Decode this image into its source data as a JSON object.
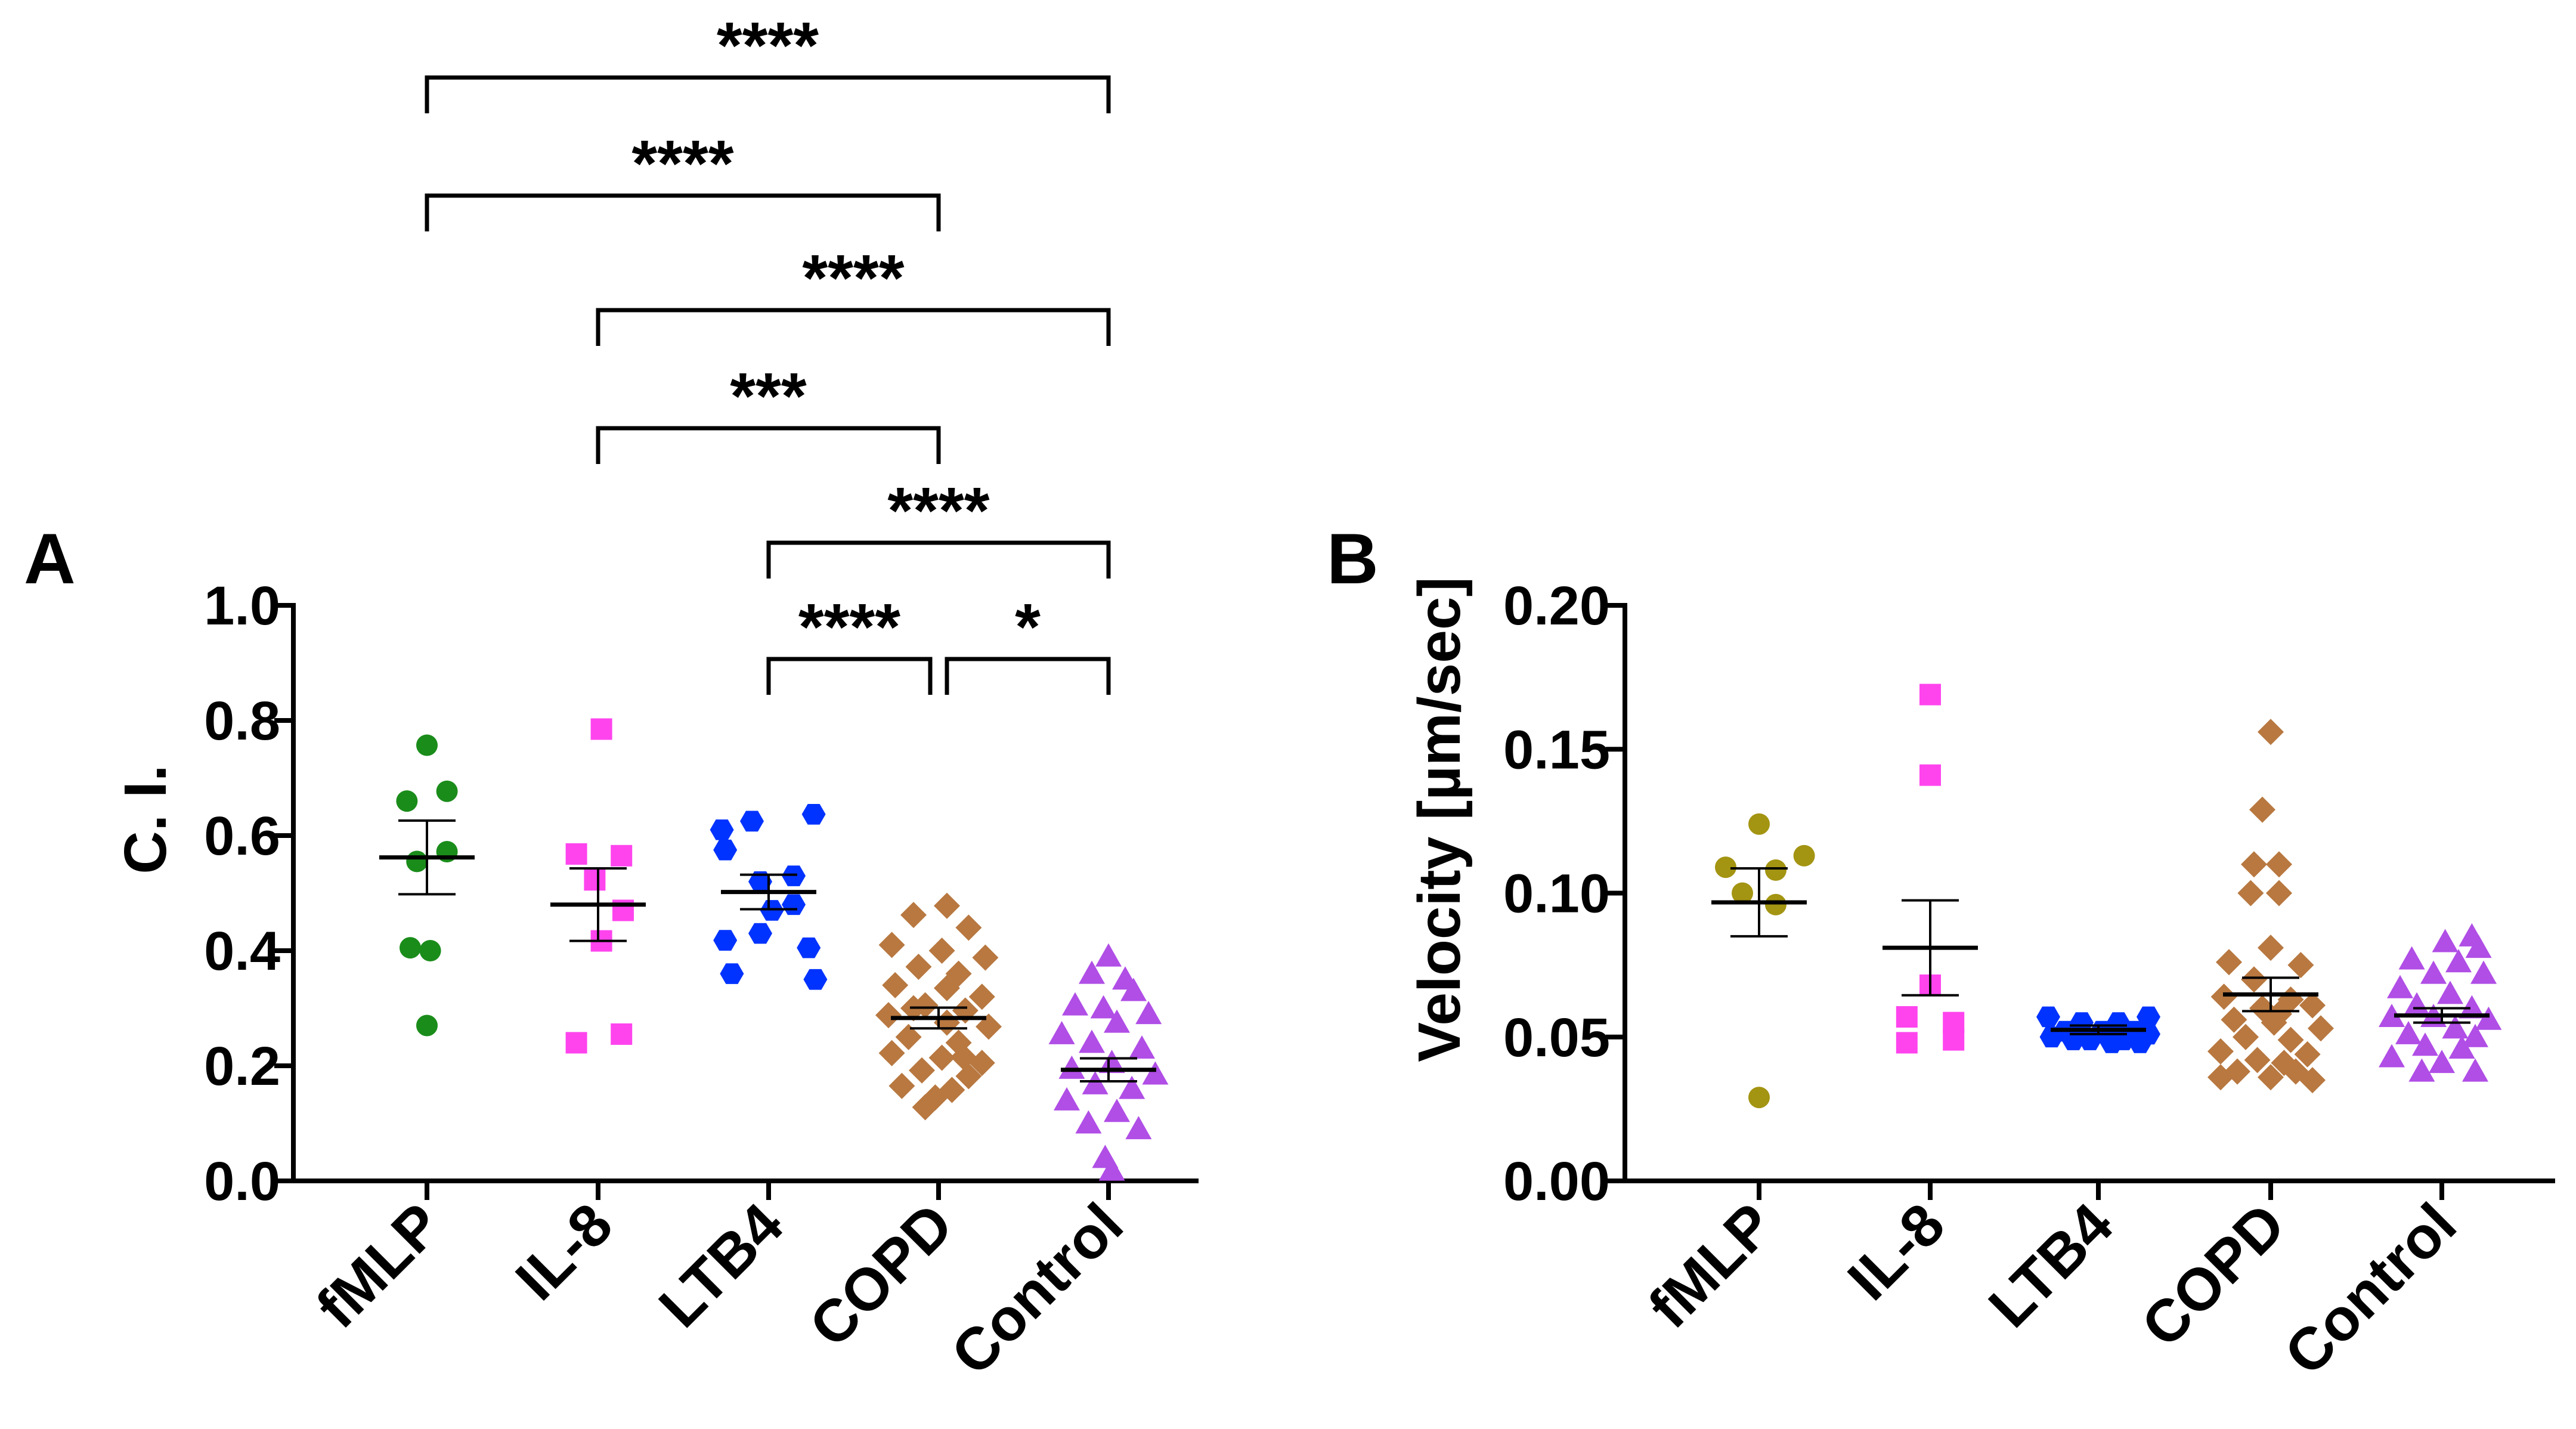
{
  "panels": [
    {
      "letter": "A"
    },
    {
      "letter": "B"
    }
  ],
  "chart_data": [
    {
      "type": "scatter",
      "panel": "A",
      "title": "",
      "xlabel": "",
      "ylabel": "C. I.",
      "ylim": [
        0,
        1.0
      ],
      "yticks": [
        0.0,
        0.2,
        0.4,
        0.6,
        0.8,
        1.0
      ],
      "ytick_labels": [
        "0.0",
        "0.2",
        "0.4",
        "0.6",
        "0.8",
        "1.0"
      ],
      "categories": [
        "fMLP",
        "IL-8",
        "LTB4",
        "COPD",
        "Control"
      ],
      "groups": [
        {
          "name": "fMLP",
          "color": "#1a8c1a",
          "marker": "circle",
          "mean": 0.562,
          "sem": 0.064,
          "points": [
            [
              -0.12,
              0.66
            ],
            [
              0.0,
              0.757
            ],
            [
              0.12,
              0.677
            ],
            [
              -0.06,
              0.555
            ],
            [
              0.12,
              0.572
            ],
            [
              0.02,
              0.4
            ],
            [
              -0.1,
              0.405
            ],
            [
              0.0,
              0.27
            ]
          ]
        },
        {
          "name": "IL-8",
          "color": "#ff44ee",
          "marker": "square",
          "mean": 0.48,
          "sem": 0.063,
          "points": [
            [
              0.02,
              0.785
            ],
            [
              -0.13,
              0.568
            ],
            [
              0.14,
              0.565
            ],
            [
              -0.02,
              0.523
            ],
            [
              0.15,
              0.47
            ],
            [
              0.02,
              0.417
            ],
            [
              -0.13,
              0.24
            ],
            [
              0.14,
              0.255
            ]
          ]
        },
        {
          "name": "LTB4",
          "color": "#0033ff",
          "marker": "hexagon",
          "mean": 0.502,
          "sem": 0.03,
          "points": [
            [
              -0.28,
              0.61
            ],
            [
              -0.1,
              0.625
            ],
            [
              0.27,
              0.637
            ],
            [
              -0.26,
              0.575
            ],
            [
              -0.05,
              0.52
            ],
            [
              0.15,
              0.53
            ],
            [
              -0.26,
              0.418
            ],
            [
              -0.05,
              0.43
            ],
            [
              0.24,
              0.405
            ],
            [
              0.02,
              0.47
            ],
            [
              0.15,
              0.48
            ],
            [
              -0.22,
              0.36
            ],
            [
              0.28,
              0.35
            ]
          ]
        },
        {
          "name": "COPD",
          "color": "#b87840",
          "marker": "diamond",
          "mean": 0.283,
          "sem": 0.018,
          "points": [
            [
              0.05,
              0.478
            ],
            [
              -0.15,
              0.462
            ],
            [
              0.18,
              0.44
            ],
            [
              -0.28,
              0.41
            ],
            [
              0.02,
              0.4
            ],
            [
              0.28,
              0.388
            ],
            [
              -0.12,
              0.372
            ],
            [
              0.12,
              0.36
            ],
            [
              -0.26,
              0.34
            ],
            [
              0.05,
              0.335
            ],
            [
              0.26,
              0.32
            ],
            [
              -0.08,
              0.305
            ],
            [
              0.16,
              0.296
            ],
            [
              -0.3,
              0.288
            ],
            [
              0.05,
              0.275
            ],
            [
              0.3,
              0.268
            ],
            [
              -0.18,
              0.25
            ],
            [
              0.12,
              0.24
            ],
            [
              -0.28,
              0.222
            ],
            [
              0.02,
              0.214
            ],
            [
              0.26,
              0.205
            ],
            [
              -0.1,
              0.192
            ],
            [
              0.18,
              0.182
            ],
            [
              -0.22,
              0.165
            ],
            [
              0.08,
              0.158
            ],
            [
              -0.02,
              0.145
            ],
            [
              -0.08,
              0.128
            ],
            [
              0.15,
              0.215
            ],
            [
              -0.15,
              0.3
            ]
          ]
        },
        {
          "name": "Control",
          "color": "#b04ee6",
          "marker": "triangle",
          "mean": 0.193,
          "sem": 0.02,
          "points": [
            [
              0.0,
              0.39
            ],
            [
              -0.1,
              0.36
            ],
            [
              0.1,
              0.35
            ],
            [
              0.15,
              0.33
            ],
            [
              -0.2,
              0.305
            ],
            [
              -0.03,
              0.3
            ],
            [
              0.24,
              0.29
            ],
            [
              0.05,
              0.275
            ],
            [
              -0.28,
              0.255
            ],
            [
              -0.1,
              0.24
            ],
            [
              0.2,
              0.23
            ],
            [
              0.02,
              0.205
            ],
            [
              -0.22,
              0.195
            ],
            [
              0.28,
              0.185
            ],
            [
              -0.08,
              0.168
            ],
            [
              0.14,
              0.16
            ],
            [
              -0.25,
              0.14
            ],
            [
              0.05,
              0.12
            ],
            [
              -0.12,
              0.1
            ],
            [
              0.18,
              0.09
            ],
            [
              -0.02,
              0.04
            ],
            [
              0.02,
              0.018
            ]
          ]
        }
      ],
      "comparisons": [
        {
          "from": "fMLP",
          "to": "Control",
          "label": "****"
        },
        {
          "from": "fMLP",
          "to": "COPD",
          "label": "****"
        },
        {
          "from": "IL-8",
          "to": "Control",
          "label": "****"
        },
        {
          "from": "IL-8",
          "to": "COPD",
          "label": "***"
        },
        {
          "from": "LTB4",
          "to": "Control",
          "label": "****"
        },
        {
          "from": "LTB4",
          "to": "COPD",
          "label": "****"
        },
        {
          "from": "COPD",
          "to": "Control",
          "label": "*"
        }
      ]
    },
    {
      "type": "scatter",
      "panel": "B",
      "title": "",
      "xlabel": "",
      "ylabel": "Velocity [µm/sec]",
      "ylim": [
        0,
        0.2
      ],
      "yticks": [
        0.0,
        0.05,
        0.1,
        0.15,
        0.2
      ],
      "ytick_labels": [
        "0.00",
        "0.05",
        "0.10",
        "0.15",
        "0.20"
      ],
      "categories": [
        "fMLP",
        "IL-8",
        "LTB4",
        "COPD",
        "Control"
      ],
      "groups": [
        {
          "name": "fMLP",
          "color": "#a39412",
          "marker": "circle",
          "mean": 0.0968,
          "sem": 0.0118,
          "points": [
            [
              0.0,
              0.124
            ],
            [
              -0.2,
              0.109
            ],
            [
              0.1,
              0.108
            ],
            [
              0.27,
              0.113
            ],
            [
              -0.1,
              0.1
            ],
            [
              0.1,
              0.096
            ],
            [
              0.0,
              0.029
            ]
          ]
        },
        {
          "name": "IL-8",
          "color": "#ff44ee",
          "marker": "square",
          "mean": 0.081,
          "sem": 0.0165,
          "points": [
            [
              0.0,
              0.169
            ],
            [
              0.0,
              0.141
            ],
            [
              0.0,
              0.068
            ],
            [
              -0.14,
              0.057
            ],
            [
              0.14,
              0.055
            ],
            [
              -0.14,
              0.048
            ],
            [
              0.14,
              0.049
            ]
          ]
        },
        {
          "name": "LTB4",
          "color": "#0033ff",
          "marker": "hexagon",
          "mean": 0.0525,
          "sem": 0.0015,
          "points": [
            [
              -0.3,
              0.057
            ],
            [
              -0.1,
              0.055
            ],
            [
              0.12,
              0.055
            ],
            [
              0.3,
              0.057
            ],
            [
              -0.2,
              0.052
            ],
            [
              0.02,
              0.052
            ],
            [
              0.22,
              0.052
            ],
            [
              -0.28,
              0.05
            ],
            [
              -0.05,
              0.049
            ],
            [
              0.15,
              0.049
            ],
            [
              0.3,
              0.051
            ],
            [
              -0.15,
              0.049
            ],
            [
              0.08,
              0.048
            ],
            [
              0.25,
              0.048
            ]
          ]
        },
        {
          "name": "COPD",
          "color": "#b87840",
          "marker": "diamond",
          "mean": 0.0648,
          "sem": 0.0058,
          "points": [
            [
              0.0,
              0.156
            ],
            [
              -0.05,
              0.129
            ],
            [
              -0.1,
              0.11
            ],
            [
              0.05,
              0.11
            ],
            [
              -0.12,
              0.1
            ],
            [
              0.05,
              0.1
            ],
            [
              0.0,
              0.081
            ],
            [
              -0.25,
              0.076
            ],
            [
              0.18,
              0.075
            ],
            [
              -0.1,
              0.07
            ],
            [
              -0.28,
              0.064
            ],
            [
              0.12,
              0.063
            ],
            [
              -0.05,
              0.06
            ],
            [
              0.25,
              0.061
            ],
            [
              -0.22,
              0.056
            ],
            [
              0.02,
              0.055
            ],
            [
              0.3,
              0.053
            ],
            [
              -0.15,
              0.05
            ],
            [
              0.12,
              0.049
            ],
            [
              -0.3,
              0.045
            ],
            [
              0.22,
              0.044
            ],
            [
              -0.08,
              0.042
            ],
            [
              0.08,
              0.041
            ],
            [
              -0.2,
              0.038
            ],
            [
              0.15,
              0.038
            ],
            [
              -0.3,
              0.036
            ],
            [
              0.0,
              0.036
            ],
            [
              0.25,
              0.035
            ],
            [
              0.05,
              0.058
            ]
          ]
        },
        {
          "name": "Control",
          "color": "#b04ee6",
          "marker": "triangle",
          "mean": 0.0575,
          "sem": 0.0025,
          "points": [
            [
              0.18,
              0.085
            ],
            [
              0.02,
              0.083
            ],
            [
              0.22,
              0.081
            ],
            [
              -0.18,
              0.077
            ],
            [
              0.1,
              0.076
            ],
            [
              -0.05,
              0.072
            ],
            [
              0.25,
              0.072
            ],
            [
              -0.25,
              0.067
            ],
            [
              0.05,
              0.065
            ],
            [
              -0.15,
              0.061
            ],
            [
              0.18,
              0.06
            ],
            [
              -0.3,
              0.057
            ],
            [
              -0.05,
              0.057
            ],
            [
              0.28,
              0.056
            ],
            [
              0.08,
              0.053
            ],
            [
              -0.2,
              0.051
            ],
            [
              0.2,
              0.05
            ],
            [
              -0.1,
              0.047
            ],
            [
              0.12,
              0.046
            ],
            [
              -0.3,
              0.043
            ],
            [
              0.0,
              0.041
            ],
            [
              0.2,
              0.038
            ],
            [
              -0.12,
              0.038
            ]
          ]
        }
      ],
      "comparisons": []
    }
  ]
}
